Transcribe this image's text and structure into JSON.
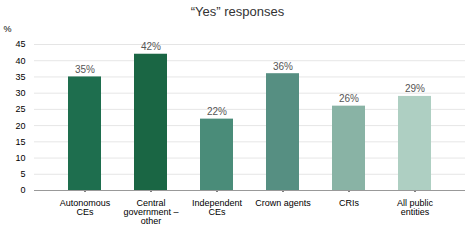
{
  "chart_data": {
    "type": "bar",
    "title": "“Yes” responses",
    "ylabel": "%",
    "categories": [
      "Autonomous\nCEs",
      "Central\ngovernment –\nother",
      "Independent\nCEs",
      "Crown agents",
      "CRIs",
      "All public\nentities"
    ],
    "values": [
      35,
      42,
      22,
      36,
      26,
      29
    ],
    "value_labels": [
      "35%",
      "42%",
      "22%",
      "36%",
      "26%",
      "29%"
    ],
    "data_labels": true,
    "colors": [
      "#1e6e4e",
      "#1a6644",
      "#4a8c79",
      "#568f82",
      "#89b3a5",
      "#aecfc2"
    ],
    "ylim": [
      0,
      45
    ],
    "yticks": [
      0,
      5,
      10,
      15,
      20,
      25,
      30,
      35,
      40,
      45
    ],
    "grid": true
  }
}
